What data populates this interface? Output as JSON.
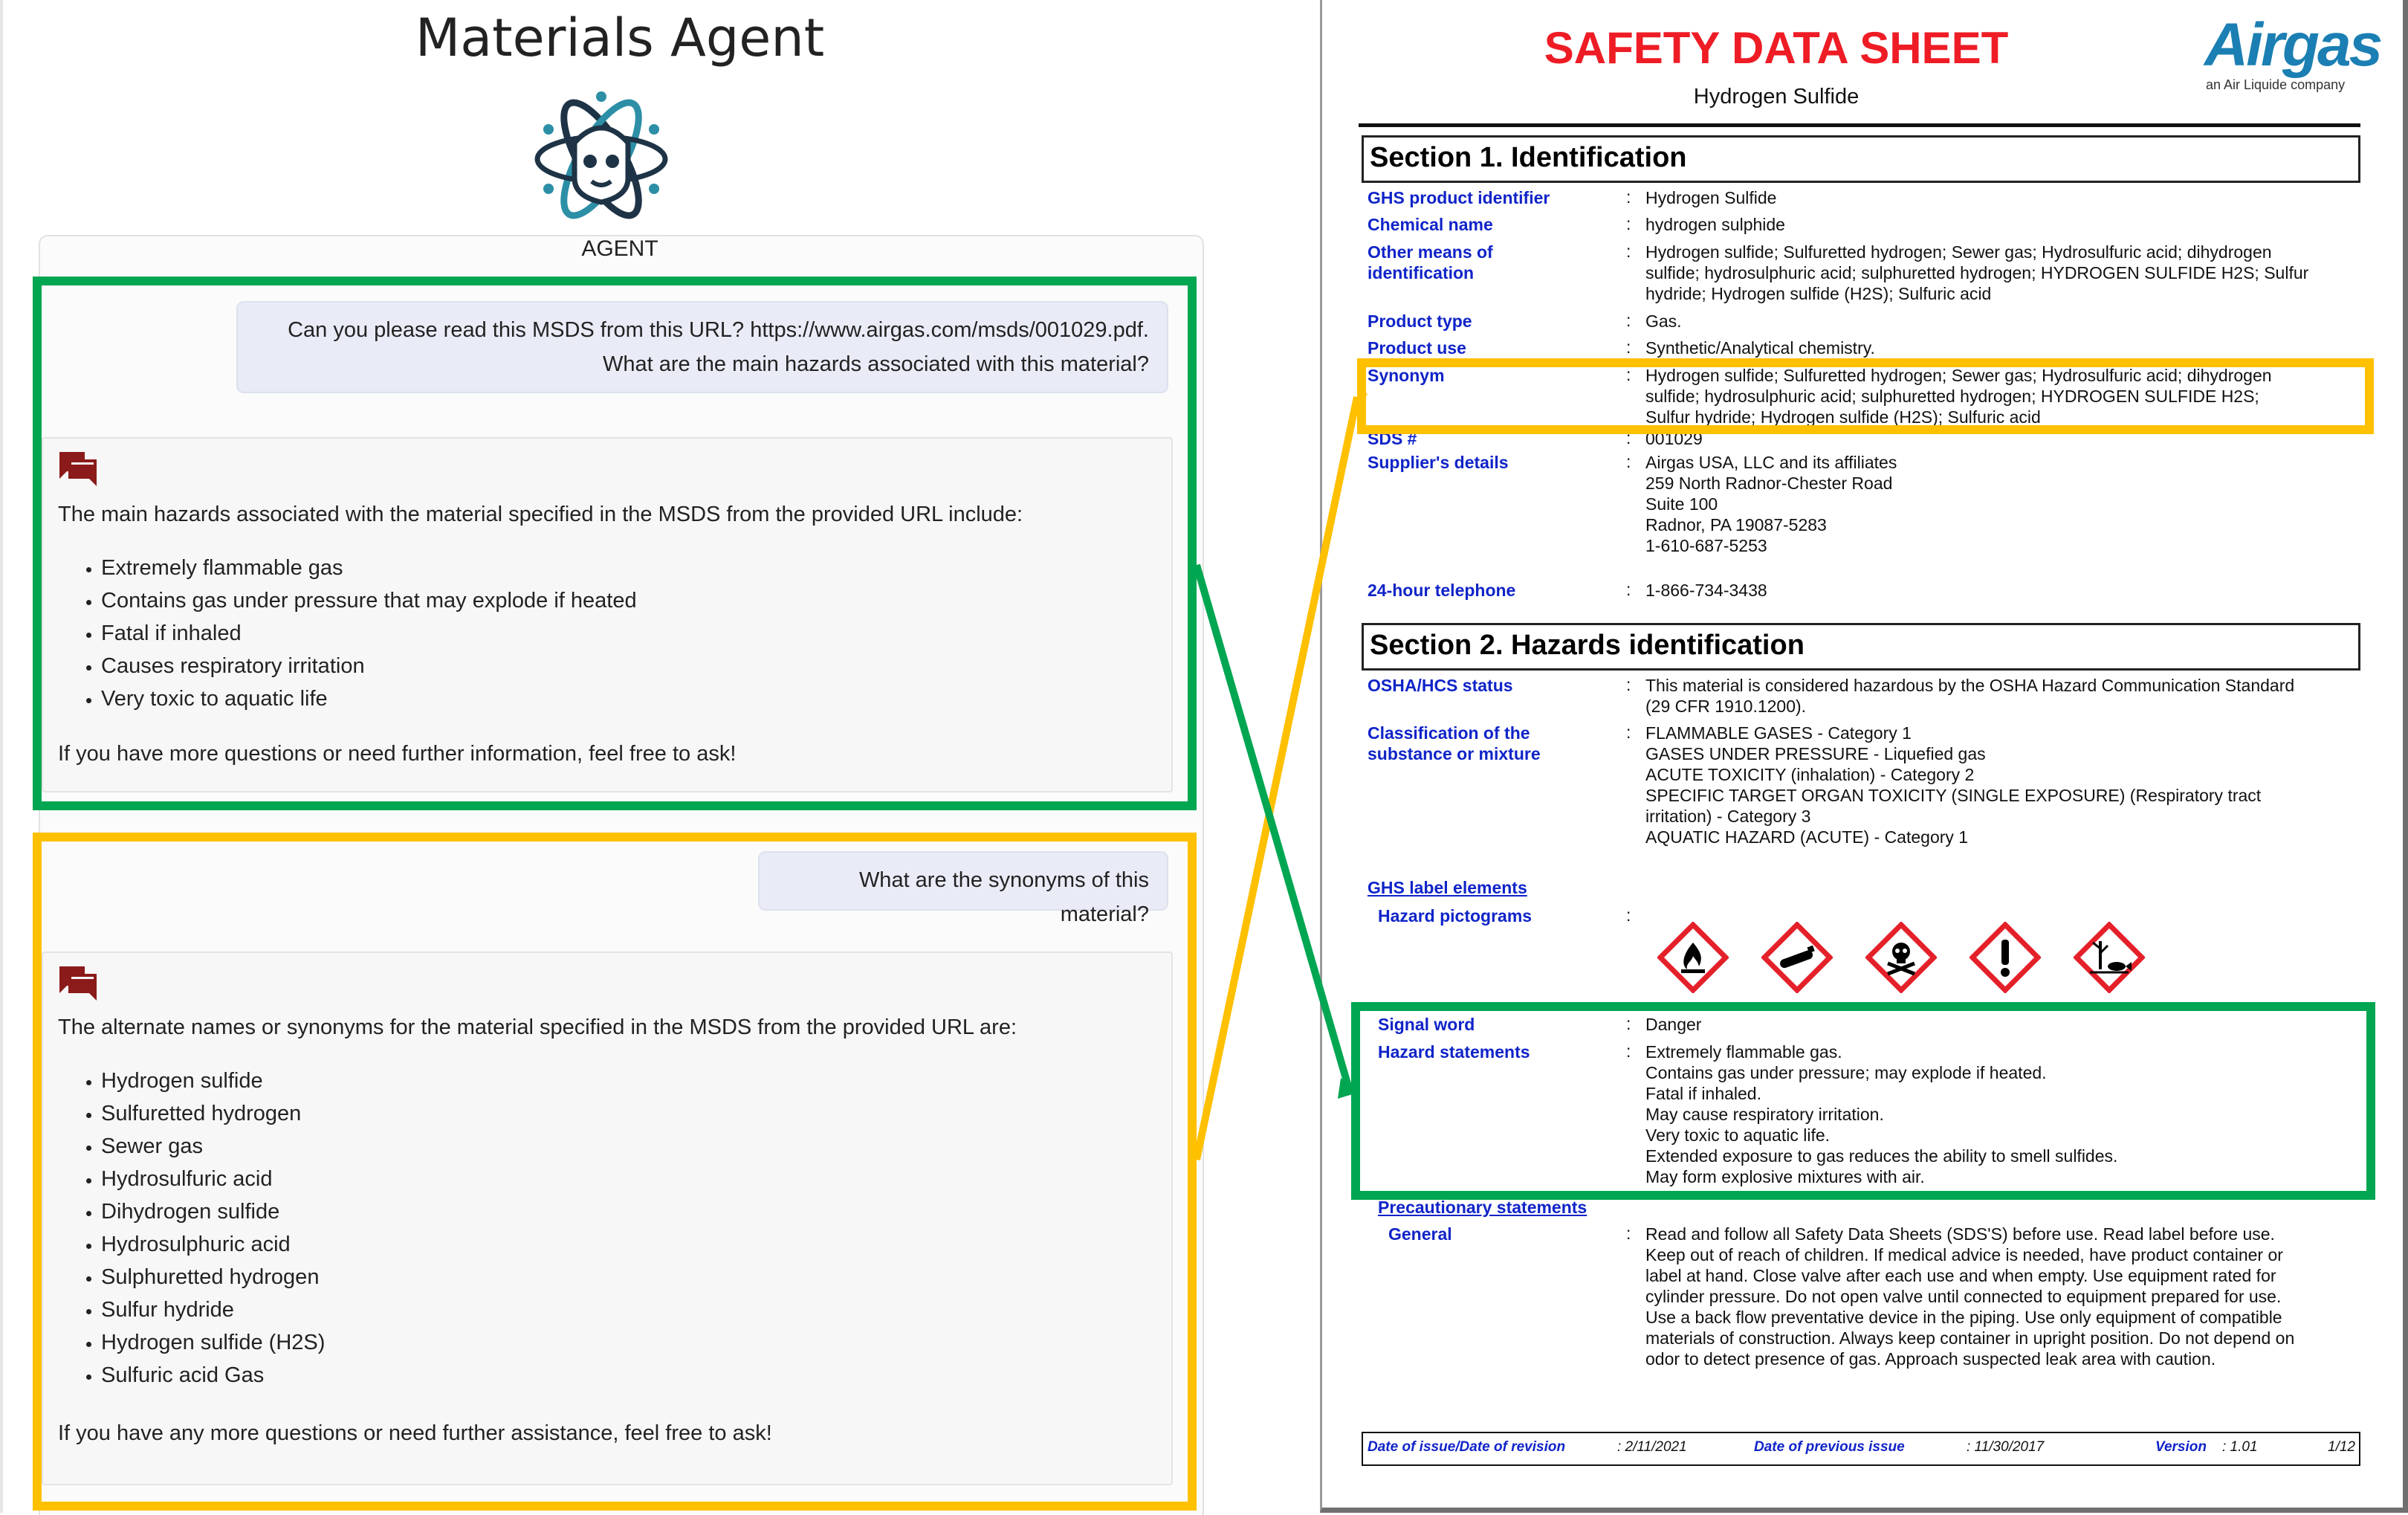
{
  "app": {
    "title": "Materials Agent",
    "agent_label": "AGENT"
  },
  "chat": {
    "q1_line1": "Can you please read this MSDS from this URL? https://www.airgas.com/msds/001029.pdf.",
    "q1_line2": "What are the main hazards associated with this material?",
    "a1_intro": "The main hazards associated with the material specified in the MSDS from the provided URL include:",
    "a1_items": [
      "Extremely flammable gas",
      "Contains gas under pressure that may explode if heated",
      "Fatal if inhaled",
      "Causes respiratory irritation",
      "Very toxic to aquatic life"
    ],
    "a1_outro": "If you have more questions or need further information, feel free to ask!",
    "q2": "What are the synonyms of this material?",
    "a2_intro": "The alternate names or synonyms for the material specified in the MSDS from the provided URL are:",
    "a2_items": [
      "Hydrogen sulfide",
      "Sulfuretted hydrogen",
      "Sewer gas",
      "Hydrosulfuric acid",
      "Dihydrogen sulfide",
      "Hydrosulphuric acid",
      "Sulphuretted hydrogen",
      "Sulfur hydride",
      "Hydrogen sulfide (H2S)",
      "Sulfuric acid Gas"
    ],
    "a2_outro": "If you have any more questions or need further assistance, feel free to ask!"
  },
  "sds": {
    "title": "SAFETY DATA SHEET",
    "product": "Hydrogen Sulfide",
    "logo": "Airgas",
    "logo_tag": "an Air Liquide company",
    "section1": "Section 1. Identification",
    "ghs_product_identifier_label": "GHS product identifier",
    "ghs_product_identifier": "Hydrogen Sulfide",
    "chemical_name_label": "Chemical name",
    "chemical_name": "hydrogen sulphide",
    "other_means_label": [
      "Other means of",
      "identification"
    ],
    "other_means": [
      "Hydrogen sulfide; Sulfuretted hydrogen; Sewer gas; Hydrosulfuric acid; dihydrogen",
      "sulfide; hydrosulphuric acid; sulphuretted hydrogen; HYDROGEN SULFIDE H2S; Sulfur",
      "hydride; Hydrogen sulfide (H2S); Sulfuric acid"
    ],
    "product_type_label": "Product type",
    "product_type": "Gas.",
    "product_use_label": "Product use",
    "product_use": "Synthetic/Analytical chemistry.",
    "synonym_label": "Synonym",
    "synonym": [
      "Hydrogen sulfide; Sulfuretted hydrogen; Sewer gas; Hydrosulfuric acid; dihydrogen",
      "sulfide; hydrosulphuric acid; sulphuretted hydrogen; HYDROGEN SULFIDE H2S;",
      "Sulfur hydride; Hydrogen sulfide (H2S); Sulfuric acid"
    ],
    "sds_number_label": "SDS #",
    "sds_number": "001029",
    "supplier_label": "Supplier's details",
    "supplier": [
      "Airgas USA, LLC and its affiliates",
      "259 North Radnor-Chester Road",
      "Suite 100",
      "Radnor, PA 19087-5283",
      "1-610-687-5253"
    ],
    "telephone_label": "24-hour telephone",
    "telephone": "1-866-734-3438",
    "section2": "Section 2. Hazards identification",
    "osha_label": "OSHA/HCS status",
    "osha": [
      "This material is considered hazardous by the OSHA Hazard Communication Standard",
      "(29 CFR 1910.1200)."
    ],
    "classification_label": [
      "Classification of the",
      "substance or mixture"
    ],
    "classification": [
      "FLAMMABLE GASES - Category 1",
      "GASES UNDER PRESSURE - Liquefied gas",
      "ACUTE TOXICITY (inhalation) - Category 2",
      "SPECIFIC TARGET ORGAN TOXICITY (SINGLE EXPOSURE) (Respiratory tract",
      "irritation) - Category 3",
      "AQUATIC HAZARD (ACUTE) - Category 1"
    ],
    "ghs_label_elements": "GHS label elements",
    "hazard_pictograms_label": "Hazard pictograms",
    "signal_word_label": "Signal word",
    "signal_word": "Danger",
    "hazard_statements_label": "Hazard statements",
    "hazard_statements": [
      "Extremely flammable gas.",
      "Contains gas under pressure; may explode if heated.",
      "Fatal if inhaled.",
      "May cause respiratory irritation.",
      "Very toxic to aquatic life.",
      "Extended exposure to gas reduces the ability to smell sulfides.",
      "May form explosive mixtures with air."
    ],
    "precautionary_label": "Precautionary statements",
    "general_label": "General",
    "general": [
      "Read and follow all Safety Data Sheets (SDS'S) before use.  Read label before use.",
      "Keep out of reach of children.  If medical advice is needed, have product container or",
      "label at hand.  Close valve after each use and when empty.  Use equipment rated for",
      "cylinder pressure.  Do not open valve until connected to equipment prepared for use.",
      "Use a back flow preventative device in the piping.  Use only equipment of compatible",
      "materials of construction.  Always keep container in upright position.  Do not depend on",
      "odor to detect presence of gas.  Approach suspected leak area with caution."
    ],
    "colon": ":",
    "footer": {
      "issue_label": "Date of issue/Date of revision",
      "issue": ": 2/11/2021",
      "previous_label": "Date of previous issue",
      "previous": ": 11/30/2017",
      "version_label": "Version",
      "version": ": 1.01",
      "page": "1/12"
    }
  },
  "colors": {
    "green_highlight": "#00a651",
    "yellow_highlight": "#ffc000",
    "sds_red": "#ee1c25",
    "sds_blue": "#1024c8",
    "pictogram_red": "#e4202a",
    "chat_icon": "#8b1a1a"
  }
}
